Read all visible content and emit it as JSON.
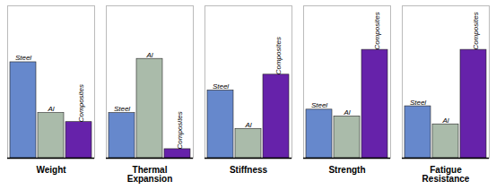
{
  "chart_data": {
    "type": "bar",
    "categories": [
      "Weight",
      "Thermal\nExpansion",
      "Stiffness",
      "Strength",
      "Fatigue\nResistance"
    ],
    "series": [
      {
        "name": "Steel",
        "color": "#6688CC",
        "values": [
          0.85,
          0.4,
          0.6,
          0.43,
          0.46
        ]
      },
      {
        "name": "Al",
        "color": "#AABBAA",
        "values": [
          0.4,
          0.88,
          0.26,
          0.37,
          0.3
        ]
      },
      {
        "name": "Composites",
        "color": "#6622AA",
        "values": [
          0.32,
          0.08,
          0.74,
          0.96,
          0.96
        ]
      }
    ],
    "ylim": [
      0,
      1.35
    ],
    "tick_labels": "x"
  }
}
